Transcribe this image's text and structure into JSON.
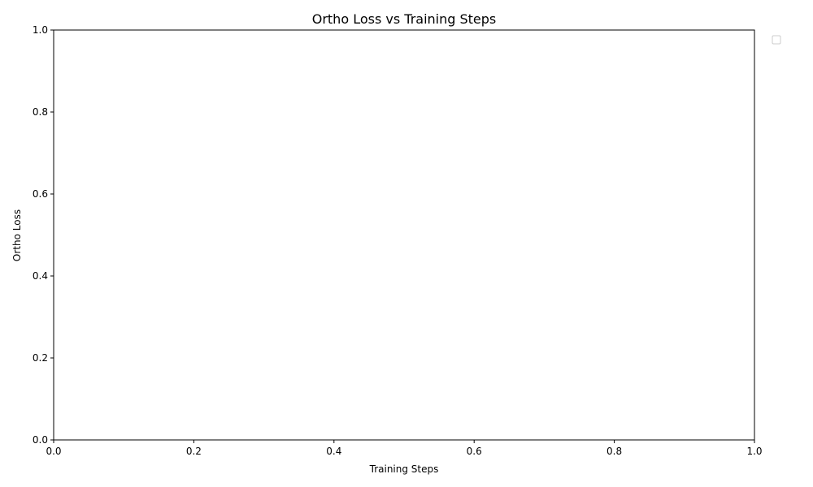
{
  "chart_data": {
    "type": "line",
    "title": "Ortho Loss vs Training Steps",
    "xlabel": "Training Steps",
    "ylabel": "Ortho Loss",
    "xlim": [
      0.0,
      1.0
    ],
    "ylim": [
      0.0,
      1.0
    ],
    "xticks": [
      "0.0",
      "0.2",
      "0.4",
      "0.6",
      "0.8",
      "1.0"
    ],
    "yticks": [
      "0.0",
      "0.2",
      "0.4",
      "0.6",
      "0.8",
      "1.0"
    ],
    "series": [],
    "grid": false,
    "legend": {
      "placement": "outside-top-right",
      "entries": []
    }
  }
}
